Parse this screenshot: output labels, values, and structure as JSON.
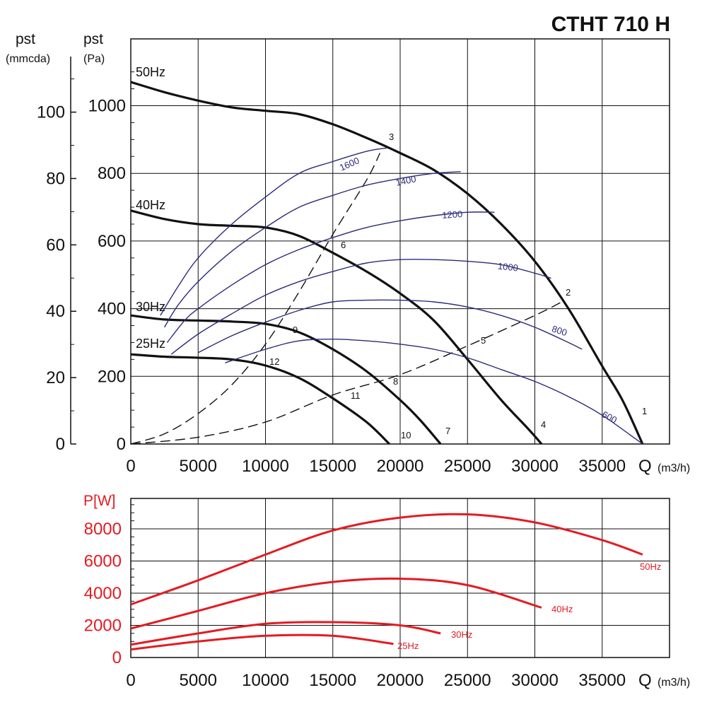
{
  "title": "CTHT 710 H",
  "chart_data": [
    {
      "type": "line",
      "name_axis_left_outer": "pst",
      "unit_axis_left_outer": "(mmcda)",
      "name_axis_left_inner": "pst",
      "unit_axis_left_inner": "(Pa)",
      "xlabel": "Q",
      "xunit": "(m3/h)",
      "xlim": [
        0,
        40000
      ],
      "ylim_pa": [
        0,
        1150
      ],
      "x_ticks": [
        "0",
        "5000",
        "10000",
        "15000",
        "20000",
        "25000",
        "30000",
        "35000"
      ],
      "y_ticks_pa": [
        "0",
        "200",
        "400",
        "600",
        "800",
        "1000"
      ],
      "y_ticks_mm": [
        "0",
        "20",
        "40",
        "60",
        "80",
        "100"
      ],
      "grid": true,
      "series": [
        {
          "name": "50Hz",
          "color": "#111111",
          "kind": "fan",
          "x": [
            0,
            2500,
            5000,
            7500,
            10000,
            12500,
            15000,
            17500,
            20000,
            22500,
            25000,
            27500,
            30000,
            32500,
            35000,
            36500,
            38000
          ],
          "y": [
            1070,
            1040,
            1015,
            995,
            985,
            975,
            945,
            905,
            860,
            810,
            740,
            650,
            540,
            400,
            230,
            130,
            0
          ]
        },
        {
          "name": "40Hz",
          "color": "#111111",
          "kind": "fan",
          "x": [
            0,
            2500,
            5000,
            7500,
            10000,
            12500,
            15000,
            17500,
            20000,
            22500,
            25000,
            27500,
            29500,
            30500
          ],
          "y": [
            690,
            665,
            650,
            645,
            640,
            615,
            565,
            510,
            445,
            365,
            250,
            130,
            45,
            0
          ]
        },
        {
          "name": "30Hz",
          "color": "#111111",
          "kind": "fan",
          "x": [
            0,
            2500,
            5000,
            7500,
            10000,
            12500,
            15000,
            17500,
            20000,
            21500,
            23000
          ],
          "y": [
            380,
            368,
            365,
            362,
            355,
            330,
            280,
            215,
            130,
            70,
            0
          ]
        },
        {
          "name": "25Hz",
          "color": "#111111",
          "kind": "fan",
          "x": [
            0,
            2500,
            5000,
            7500,
            10000,
            12500,
            15000,
            17500,
            19200
          ],
          "y": [
            265,
            258,
            255,
            250,
            232,
            195,
            135,
            65,
            0
          ]
        },
        {
          "name": "",
          "color": "#111111",
          "kind": "system-dashed",
          "x": [
            0,
            5000,
            10000,
            15000,
            20000,
            25000,
            30000,
            32000
          ],
          "y": [
            0,
            20,
            65,
            145,
            205,
            290,
            380,
            420
          ]
        },
        {
          "name": "",
          "color": "#111111",
          "kind": "system-dashed",
          "x": [
            0,
            2500,
            5000,
            7500,
            10000,
            12500,
            15000,
            17500,
            18500
          ],
          "y": [
            0,
            30,
            90,
            175,
            295,
            450,
            620,
            780,
            860
          ]
        },
        {
          "name": "1600",
          "color": "#2b2b7a",
          "kind": "rpm",
          "x": [
            2200,
            3500,
            5000,
            7500,
            10000,
            12500,
            15000,
            17500,
            19000
          ],
          "y": [
            380,
            465,
            550,
            650,
            730,
            800,
            835,
            865,
            875
          ]
        },
        {
          "name": "1400",
          "color": "#2b2b7a",
          "kind": "rpm",
          "x": [
            2500,
            3500,
            5000,
            7500,
            10000,
            12500,
            15000,
            17500,
            20000,
            22500,
            24500
          ],
          "y": [
            345,
            410,
            480,
            570,
            640,
            700,
            735,
            765,
            785,
            800,
            805
          ]
        },
        {
          "name": "1200",
          "color": "#2b2b7a",
          "kind": "rpm",
          "x": [
            2700,
            4000,
            5000,
            7500,
            10000,
            12500,
            15000,
            17500,
            20000,
            22500,
            25000,
            27000
          ],
          "y": [
            300,
            365,
            400,
            470,
            530,
            575,
            610,
            640,
            660,
            675,
            685,
            685
          ]
        },
        {
          "name": "1000",
          "color": "#2b2b7a",
          "kind": "rpm",
          "x": [
            3000,
            5000,
            7500,
            10000,
            12500,
            15000,
            17500,
            20000,
            22500,
            25000,
            27500,
            30000,
            31200
          ],
          "y": [
            265,
            325,
            385,
            440,
            480,
            510,
            535,
            545,
            545,
            540,
            530,
            505,
            490
          ]
        },
        {
          "name": "800",
          "color": "#2b2b7a",
          "kind": "rpm",
          "x": [
            5000,
            7500,
            10000,
            12500,
            15000,
            17500,
            20000,
            22500,
            25000,
            27500,
            30000,
            32500,
            33500
          ],
          "y": [
            270,
            320,
            360,
            395,
            420,
            425,
            425,
            420,
            405,
            380,
            345,
            300,
            280
          ]
        },
        {
          "name": "600",
          "color": "#2b2b7a",
          "kind": "rpm",
          "x": [
            7000,
            10000,
            12500,
            15000,
            17500,
            20000,
            22500,
            25000,
            27500,
            30000,
            32500,
            35000,
            38000
          ],
          "y": [
            240,
            280,
            305,
            310,
            305,
            295,
            280,
            255,
            220,
            185,
            140,
            85,
            0
          ]
        }
      ],
      "curve_labels": [
        "50Hz",
        "40Hz",
        "30Hz",
        "25Hz"
      ],
      "point_labels": [
        "1",
        "2",
        "3",
        "4",
        "5",
        "6",
        "7",
        "8",
        "9",
        "10",
        "11",
        "12"
      ],
      "rpm_labels": [
        "1600",
        "1400",
        "1200",
        "1000",
        "800",
        "600"
      ]
    },
    {
      "type": "line",
      "ylabel": "P[W]",
      "xlabel": "Q",
      "xunit": "(m3/h)",
      "xlim": [
        0,
        40000
      ],
      "ylim": [
        0,
        10000
      ],
      "x_ticks": [
        "0",
        "5000",
        "10000",
        "15000",
        "20000",
        "25000",
        "30000",
        "35000"
      ],
      "y_ticks": [
        "0",
        "2000",
        "4000",
        "6000",
        "8000"
      ],
      "grid": true,
      "series": [
        {
          "name": "50Hz",
          "color": "#e31b23",
          "x": [
            0,
            5000,
            10000,
            15000,
            20000,
            25000,
            30000,
            35000,
            38000
          ],
          "y": [
            3300,
            4800,
            6400,
            7900,
            8700,
            8900,
            8400,
            7300,
            6400
          ]
        },
        {
          "name": "40Hz",
          "color": "#e31b23",
          "x": [
            0,
            5000,
            10000,
            15000,
            20000,
            25000,
            30500
          ],
          "y": [
            1800,
            2900,
            4000,
            4700,
            4900,
            4500,
            3100
          ]
        },
        {
          "name": "30Hz",
          "color": "#e31b23",
          "x": [
            0,
            5000,
            10000,
            15000,
            20000,
            23000
          ],
          "y": [
            800,
            1500,
            2100,
            2200,
            2000,
            1500
          ]
        },
        {
          "name": "25Hz",
          "color": "#e31b23",
          "x": [
            0,
            5000,
            10000,
            15000,
            19500
          ],
          "y": [
            500,
            1000,
            1350,
            1350,
            850
          ]
        }
      ]
    }
  ]
}
